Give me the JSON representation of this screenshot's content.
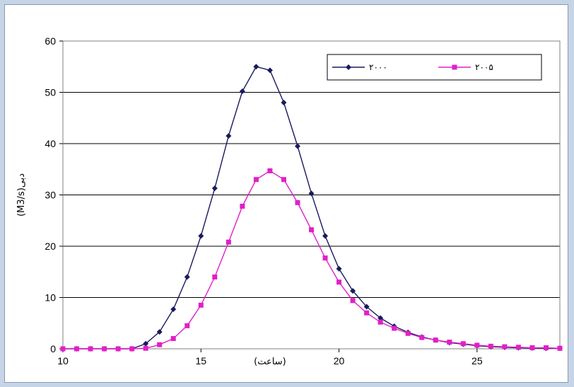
{
  "chart_data": {
    "type": "line",
    "xlabel": "(ساعت)",
    "ylabel": "(M3/s)دبی",
    "xlim": [
      10,
      28
    ],
    "ylim": [
      0,
      60
    ],
    "x_ticks": [
      "10",
      "15",
      "20",
      "25"
    ],
    "y_ticks": [
      "0",
      "10",
      "20",
      "30",
      "40",
      "50",
      "60"
    ],
    "grid": "horizontal",
    "legend_position": "top-right",
    "x": [
      10,
      10.5,
      11,
      11.5,
      12,
      12.5,
      13,
      13.5,
      14,
      14.5,
      15,
      15.5,
      16,
      16.5,
      17,
      17.5,
      18,
      18.5,
      19,
      19.5,
      20,
      20.5,
      21,
      21.5,
      22,
      22.5,
      23,
      23.5,
      24,
      24.5,
      25,
      25.5,
      26,
      26.5,
      27,
      27.5,
      28
    ],
    "series": [
      {
        "name": "۲۰۰۰",
        "color": "#1a1a5e",
        "marker": "diamond",
        "values": [
          0,
          0,
          0,
          0,
          0,
          0,
          1,
          3.3,
          7.7,
          14,
          22,
          31.3,
          41.5,
          50.2,
          55,
          54.3,
          48,
          39.5,
          30.3,
          22,
          15.6,
          11.3,
          8.2,
          6,
          4.4,
          3.2,
          2.3,
          1.7,
          1.2,
          0.9,
          0.6,
          0.4,
          0.3,
          0.2,
          0.15,
          0.1,
          0.1
        ]
      },
      {
        "name": "۲۰۰۵",
        "color": "#e020c8",
        "marker": "square",
        "values": [
          0,
          0,
          0,
          0,
          0,
          0,
          0.1,
          0.8,
          2,
          4.5,
          8.5,
          14,
          20.8,
          27.8,
          33,
          34.7,
          33,
          28.5,
          23.2,
          17.7,
          13,
          9.4,
          7,
          5.2,
          4,
          3,
          2.2,
          1.7,
          1.3,
          1,
          0.7,
          0.5,
          0.4,
          0.3,
          0.2,
          0.2,
          0.1
        ]
      }
    ]
  }
}
